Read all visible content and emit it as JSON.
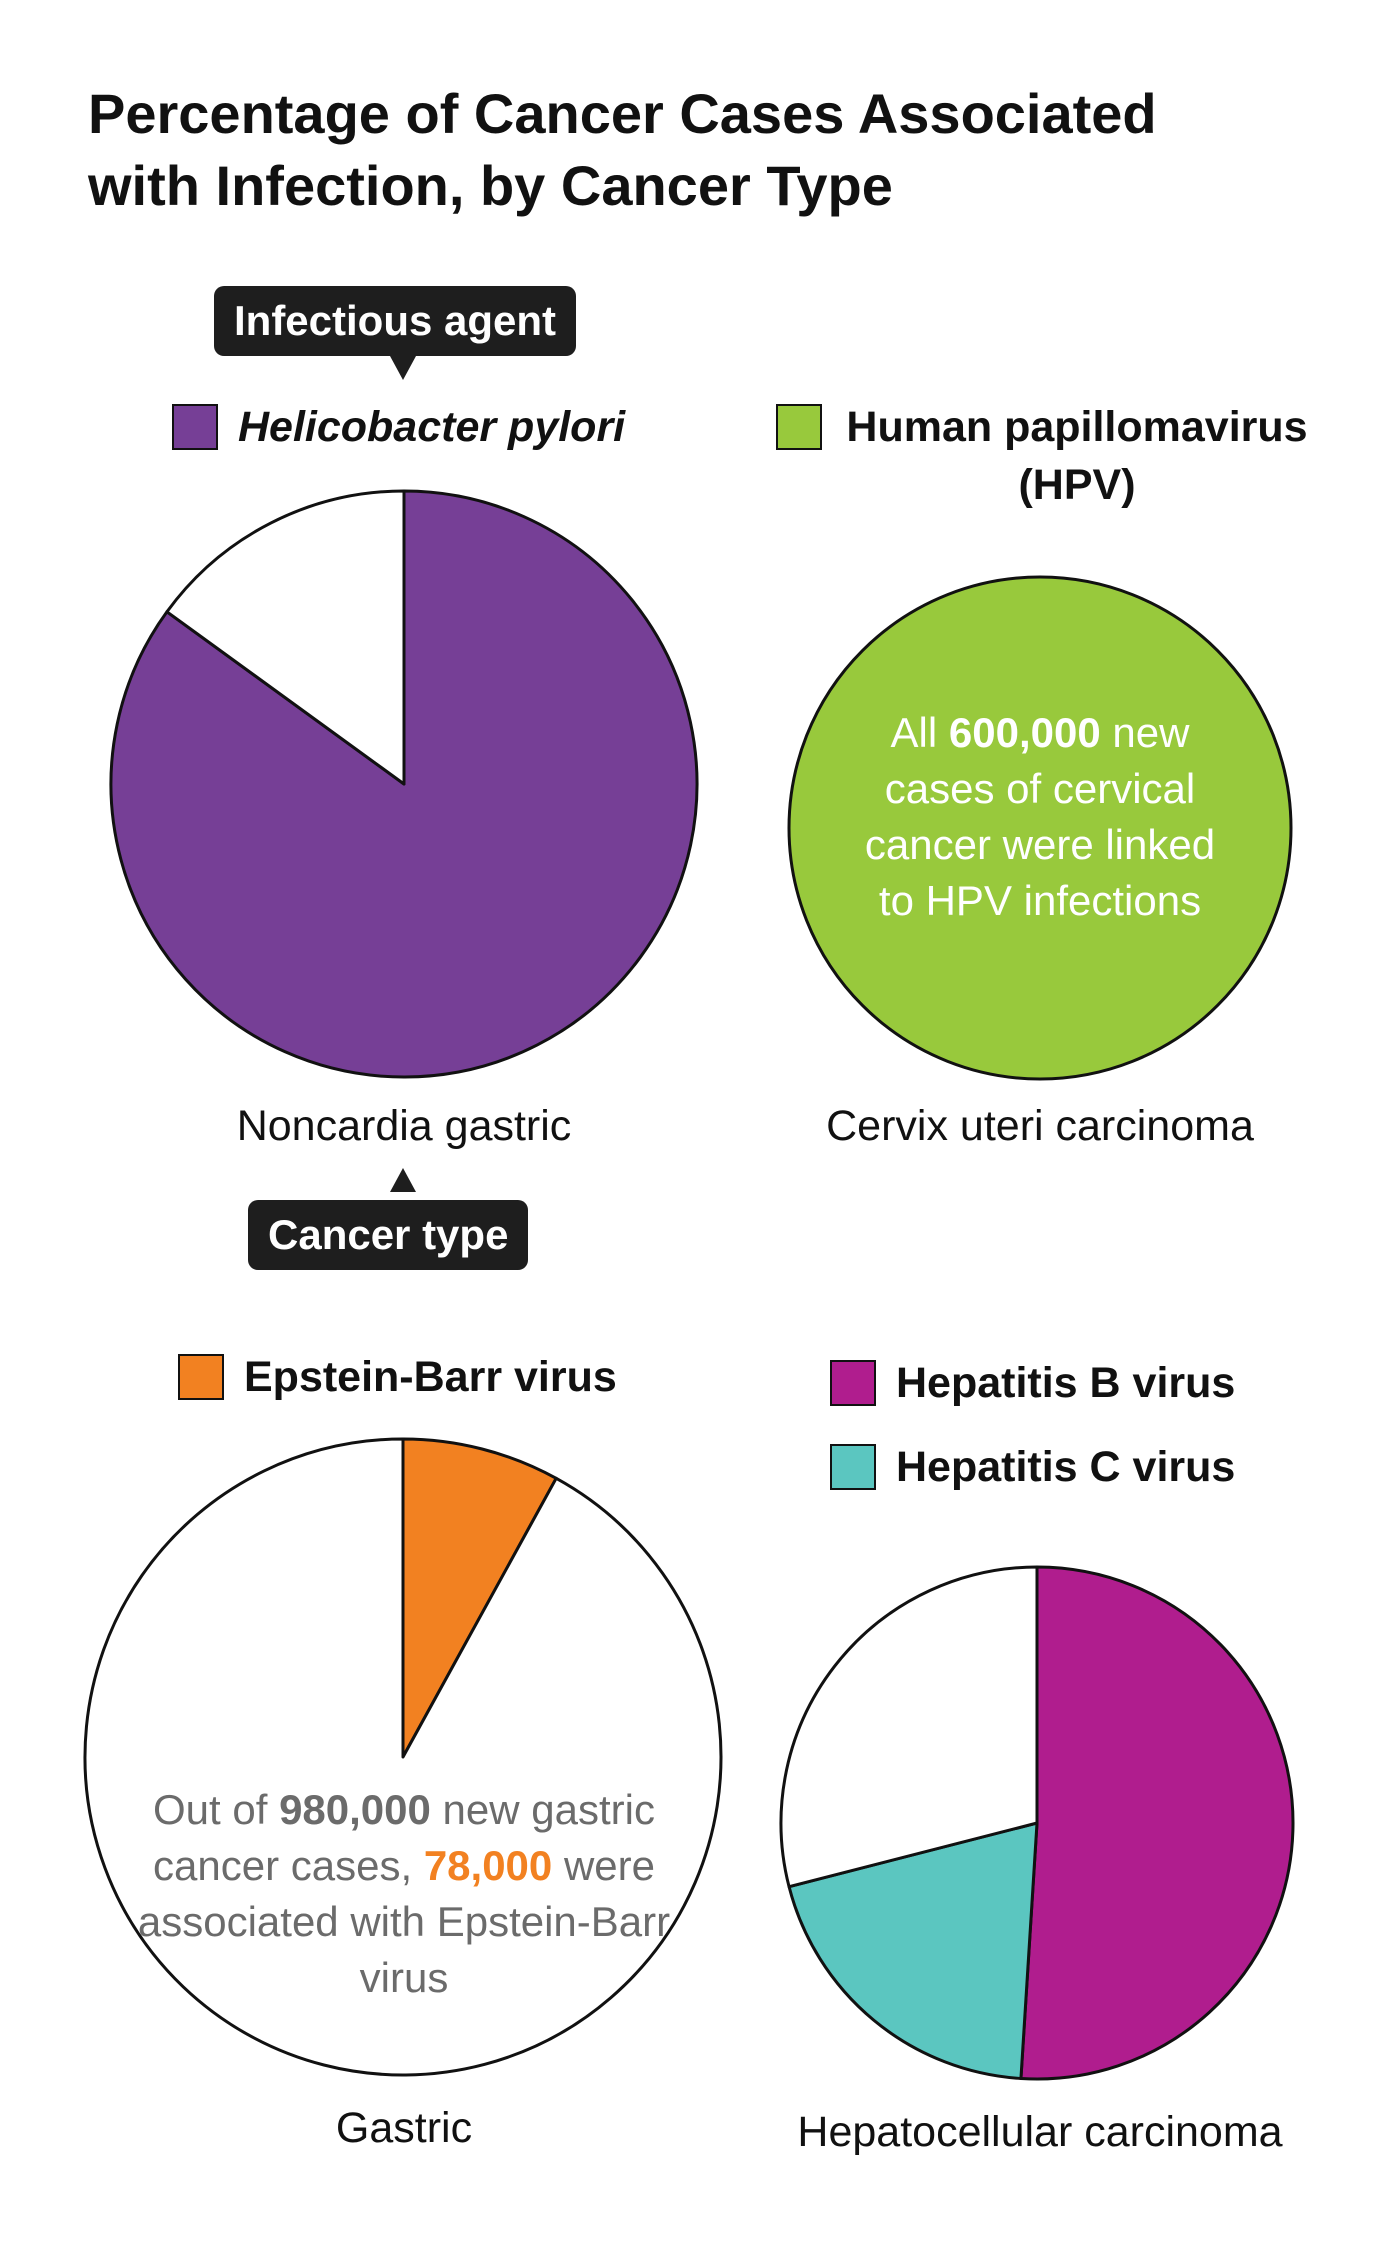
{
  "title_line1": "Percentage of Cancer Cases Associated",
  "title_line2": "with Infection, by Cancer Type",
  "callouts": {
    "infectious_agent": "Infectious agent",
    "cancer_type": "Cancer type"
  },
  "colors": {
    "h_pylori": "#763f96",
    "hpv": "#98c93c",
    "ebv": "#f28121",
    "hep_b": "#b01d8e",
    "hep_c": "#5bc6c0",
    "empty": "#ffffff",
    "outline": "#111111",
    "note_gray": "#6b6b6b"
  },
  "chart_data": [
    {
      "type": "pie",
      "cancer_type": "Noncardia gastric",
      "legend": [
        {
          "label": "Helicobacter pylori",
          "color": "#763f96"
        }
      ],
      "slices": [
        {
          "label": "Helicobacter pylori",
          "percent": 85,
          "color": "#763f96"
        },
        {
          "label": "",
          "percent": 15,
          "color": "#ffffff"
        }
      ]
    },
    {
      "type": "pie",
      "cancer_type": "Cervix uteri carcinoma",
      "legend": [
        {
          "label": "Human papillomavirus (HPV)",
          "color": "#98c93c"
        }
      ],
      "slices": [
        {
          "label": "Human papillomavirus (HPV)",
          "percent": 100,
          "color": "#98c93c"
        }
      ],
      "note": {
        "prefix": "All ",
        "number": "600,000",
        "suffix": " new cases of cervical cancer were linked to HPV infections"
      }
    },
    {
      "type": "pie",
      "cancer_type": "Gastric",
      "legend": [
        {
          "label": "Epstein-Barr virus",
          "color": "#f28121"
        }
      ],
      "slices": [
        {
          "label": "Epstein-Barr virus",
          "percent": 8,
          "color": "#f28121"
        },
        {
          "label": "",
          "percent": 92,
          "color": "#ffffff"
        }
      ],
      "note": {
        "part1": "Out of ",
        "number1": "980,000",
        "part2": " new gastric cancer cases, ",
        "number2": "78,000",
        "part3": " were associated with Epstein-Barr virus"
      }
    },
    {
      "type": "pie",
      "cancer_type": "Hepatocellular carcinoma",
      "legend": [
        {
          "label": "Hepatitis B virus",
          "color": "#b01d8e"
        },
        {
          "label": "Hepatitis C virus",
          "color": "#5bc6c0"
        }
      ],
      "slices": [
        {
          "label": "Hepatitis B virus",
          "percent": 51,
          "color": "#b01d8e"
        },
        {
          "label": "Hepatitis C virus",
          "percent": 20,
          "color": "#5bc6c0"
        },
        {
          "label": "",
          "percent": 29,
          "color": "#ffffff"
        }
      ]
    }
  ]
}
